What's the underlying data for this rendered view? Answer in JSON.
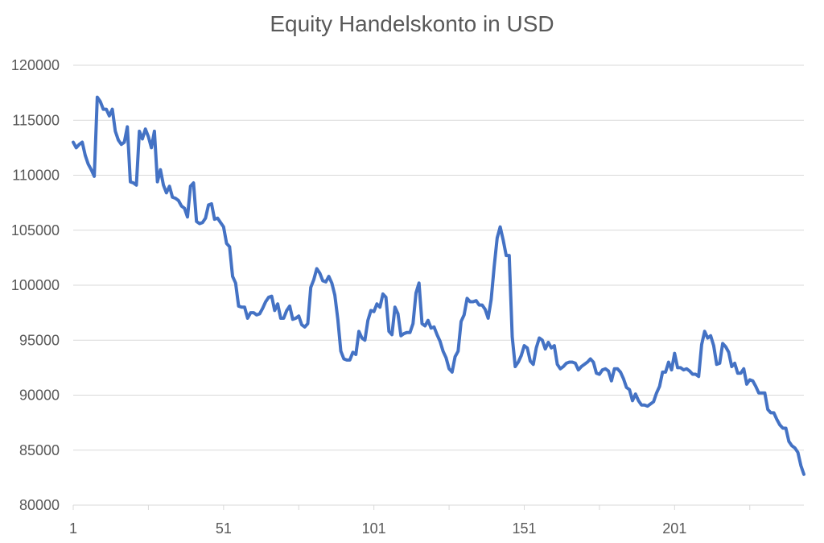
{
  "chart_data": {
    "type": "line",
    "title": "Equity Handelskonto in USD",
    "xlabel": "",
    "ylabel": "",
    "ylim": [
      80000,
      120000
    ],
    "yticks": [
      80000,
      85000,
      90000,
      95000,
      100000,
      105000,
      110000,
      115000,
      120000
    ],
    "xticks": [
      1,
      51,
      101,
      151,
      201
    ],
    "xlim": [
      1,
      244
    ],
    "grid": true,
    "legend": "none",
    "line_color": "#4472c4",
    "series": [
      {
        "points": [
          [
            1,
            113000
          ],
          [
            2,
            112500
          ],
          [
            3,
            112800
          ],
          [
            4,
            113000
          ],
          [
            5,
            111800
          ],
          [
            6,
            111000
          ],
          [
            7,
            110500
          ],
          [
            8,
            109900
          ],
          [
            9,
            117100
          ],
          [
            10,
            116700
          ],
          [
            11,
            116000
          ],
          [
            12,
            116000
          ],
          [
            13,
            115400
          ],
          [
            14,
            116000
          ],
          [
            15,
            114000
          ],
          [
            16,
            113200
          ],
          [
            17,
            112800
          ],
          [
            18,
            113000
          ],
          [
            19,
            114400
          ],
          [
            20,
            109400
          ],
          [
            21,
            109300
          ],
          [
            22,
            109100
          ],
          [
            23,
            114000
          ],
          [
            24,
            113300
          ],
          [
            25,
            114200
          ],
          [
            26,
            113500
          ],
          [
            27,
            112500
          ],
          [
            28,
            114000
          ],
          [
            29,
            109400
          ],
          [
            30,
            110500
          ],
          [
            31,
            109100
          ],
          [
            32,
            108400
          ],
          [
            33,
            109000
          ],
          [
            34,
            108000
          ],
          [
            35,
            107900
          ],
          [
            36,
            107700
          ],
          [
            37,
            107200
          ],
          [
            38,
            107000
          ],
          [
            39,
            106200
          ],
          [
            40,
            109000
          ],
          [
            41,
            109300
          ],
          [
            42,
            105800
          ],
          [
            43,
            105600
          ],
          [
            44,
            105700
          ],
          [
            45,
            106100
          ],
          [
            46,
            107300
          ],
          [
            47,
            107400
          ],
          [
            48,
            106000
          ],
          [
            49,
            106100
          ],
          [
            50,
            105700
          ],
          [
            51,
            105300
          ],
          [
            52,
            103800
          ],
          [
            53,
            103500
          ],
          [
            54,
            100800
          ],
          [
            55,
            100200
          ],
          [
            56,
            98100
          ],
          [
            57,
            98000
          ],
          [
            58,
            98000
          ],
          [
            59,
            97000
          ],
          [
            60,
            97500
          ],
          [
            61,
            97500
          ],
          [
            62,
            97300
          ],
          [
            63,
            97400
          ],
          [
            64,
            97900
          ],
          [
            65,
            98500
          ],
          [
            66,
            98900
          ],
          [
            67,
            99000
          ],
          [
            68,
            97700
          ],
          [
            69,
            98300
          ],
          [
            70,
            97000
          ],
          [
            71,
            97000
          ],
          [
            72,
            97700
          ],
          [
            73,
            98100
          ],
          [
            74,
            96900
          ],
          [
            75,
            97000
          ],
          [
            76,
            97200
          ],
          [
            77,
            96400
          ],
          [
            78,
            96200
          ],
          [
            79,
            96500
          ],
          [
            80,
            99800
          ],
          [
            81,
            100500
          ],
          [
            82,
            101500
          ],
          [
            83,
            101100
          ],
          [
            84,
            100400
          ],
          [
            85,
            100300
          ],
          [
            86,
            100800
          ],
          [
            87,
            100200
          ],
          [
            88,
            99100
          ],
          [
            89,
            96900
          ],
          [
            90,
            94000
          ],
          [
            91,
            93300
          ],
          [
            92,
            93200
          ],
          [
            93,
            93200
          ],
          [
            94,
            93900
          ],
          [
            95,
            93700
          ],
          [
            96,
            95800
          ],
          [
            97,
            95200
          ],
          [
            98,
            95000
          ],
          [
            99,
            96800
          ],
          [
            100,
            97700
          ],
          [
            101,
            97600
          ],
          [
            102,
            98300
          ],
          [
            103,
            98000
          ],
          [
            104,
            99200
          ],
          [
            105,
            98900
          ],
          [
            106,
            95800
          ],
          [
            107,
            95500
          ],
          [
            108,
            98000
          ],
          [
            109,
            97400
          ],
          [
            110,
            95400
          ],
          [
            111,
            95600
          ],
          [
            112,
            95700
          ],
          [
            113,
            95700
          ],
          [
            114,
            96500
          ],
          [
            115,
            99300
          ],
          [
            116,
            100200
          ],
          [
            117,
            96500
          ],
          [
            118,
            96300
          ],
          [
            119,
            96800
          ],
          [
            120,
            96100
          ],
          [
            121,
            96200
          ],
          [
            122,
            95500
          ],
          [
            123,
            94900
          ],
          [
            124,
            94000
          ],
          [
            125,
            93400
          ],
          [
            126,
            92400
          ],
          [
            127,
            92100
          ],
          [
            128,
            93500
          ],
          [
            129,
            94000
          ],
          [
            130,
            96700
          ],
          [
            131,
            97300
          ],
          [
            132,
            98800
          ],
          [
            133,
            98500
          ],
          [
            134,
            98500
          ],
          [
            135,
            98600
          ],
          [
            136,
            98200
          ],
          [
            137,
            98200
          ],
          [
            138,
            97800
          ],
          [
            139,
            97000
          ],
          [
            140,
            98700
          ],
          [
            141,
            101700
          ],
          [
            142,
            104300
          ],
          [
            143,
            105300
          ],
          [
            144,
            104100
          ],
          [
            145,
            102700
          ],
          [
            146,
            102700
          ],
          [
            147,
            95300
          ],
          [
            148,
            92600
          ],
          [
            149,
            93000
          ],
          [
            150,
            93600
          ],
          [
            151,
            94500
          ],
          [
            152,
            94300
          ],
          [
            153,
            93100
          ],
          [
            154,
            92800
          ],
          [
            155,
            94300
          ],
          [
            156,
            95200
          ],
          [
            157,
            95000
          ],
          [
            158,
            94200
          ],
          [
            159,
            94800
          ],
          [
            160,
            94300
          ],
          [
            161,
            94500
          ],
          [
            162,
            92800
          ],
          [
            163,
            92400
          ],
          [
            164,
            92600
          ],
          [
            165,
            92900
          ],
          [
            166,
            93000
          ],
          [
            167,
            93000
          ],
          [
            168,
            92900
          ],
          [
            169,
            92300
          ],
          [
            170,
            92600
          ],
          [
            171,
            92800
          ],
          [
            172,
            93000
          ],
          [
            173,
            93300
          ],
          [
            174,
            93000
          ],
          [
            175,
            92000
          ],
          [
            176,
            91900
          ],
          [
            177,
            92300
          ],
          [
            178,
            92400
          ],
          [
            179,
            92200
          ],
          [
            180,
            91300
          ],
          [
            181,
            92400
          ],
          [
            182,
            92400
          ],
          [
            183,
            92100
          ],
          [
            184,
            91500
          ],
          [
            185,
            90700
          ],
          [
            186,
            90500
          ],
          [
            187,
            89500
          ],
          [
            188,
            90100
          ],
          [
            189,
            89500
          ],
          [
            190,
            89100
          ],
          [
            191,
            89100
          ],
          [
            192,
            89000
          ],
          [
            193,
            89200
          ],
          [
            194,
            89400
          ],
          [
            195,
            90200
          ],
          [
            196,
            90800
          ],
          [
            197,
            92100
          ],
          [
            198,
            92100
          ],
          [
            199,
            93000
          ],
          [
            200,
            92300
          ],
          [
            201,
            93800
          ],
          [
            202,
            92500
          ],
          [
            203,
            92500
          ],
          [
            204,
            92300
          ],
          [
            205,
            92400
          ],
          [
            206,
            92200
          ],
          [
            207,
            91900
          ],
          [
            208,
            91900
          ],
          [
            209,
            91700
          ],
          [
            210,
            94600
          ],
          [
            211,
            95800
          ],
          [
            212,
            95200
          ],
          [
            213,
            95400
          ],
          [
            214,
            94500
          ],
          [
            215,
            92800
          ],
          [
            216,
            92900
          ],
          [
            217,
            94700
          ],
          [
            218,
            94400
          ],
          [
            219,
            93900
          ],
          [
            220,
            92600
          ],
          [
            221,
            92900
          ],
          [
            222,
            92000
          ],
          [
            223,
            92000
          ],
          [
            224,
            92400
          ],
          [
            225,
            91000
          ],
          [
            226,
            91400
          ],
          [
            227,
            91300
          ],
          [
            228,
            90800
          ],
          [
            229,
            90200
          ],
          [
            230,
            90200
          ],
          [
            231,
            90200
          ],
          [
            232,
            88700
          ],
          [
            233,
            88400
          ],
          [
            234,
            88400
          ],
          [
            235,
            87800
          ],
          [
            236,
            87300
          ],
          [
            237,
            87000
          ],
          [
            238,
            87000
          ],
          [
            239,
            85800
          ],
          [
            240,
            85400
          ],
          [
            241,
            85200
          ],
          [
            242,
            84800
          ],
          [
            243,
            83600
          ],
          [
            244,
            82800
          ]
        ]
      }
    ]
  }
}
